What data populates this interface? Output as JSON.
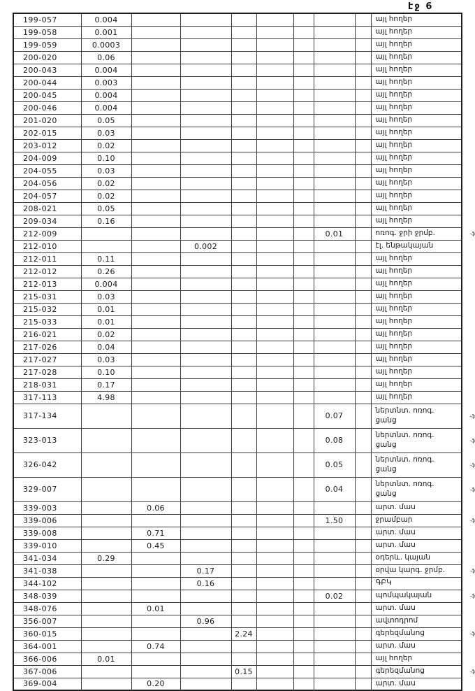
{
  "page_label": "էջ 6",
  "margin_mark": "-ֆմ",
  "rows": [
    {
      "id": "199-057",
      "values": {
        "c2": "0.004"
      },
      "name": "այլ հողեր"
    },
    {
      "id": "199-058",
      "values": {
        "c2": "0.001"
      },
      "name": "այլ հողեր"
    },
    {
      "id": "199-059",
      "values": {
        "c2": "0.0003"
      },
      "name": "այլ հողեր"
    },
    {
      "id": "200-020",
      "values": {
        "c2": "0.06"
      },
      "name": "այլ հողեր"
    },
    {
      "id": "200-043",
      "values": {
        "c2": "0.004"
      },
      "name": "այլ հողեր"
    },
    {
      "id": "200-044",
      "values": {
        "c2": "0.003"
      },
      "name": "այլ հողեր"
    },
    {
      "id": "200-045",
      "values": {
        "c2": "0.004"
      },
      "name": "այլ հողեր"
    },
    {
      "id": "200-046",
      "values": {
        "c2": "0.004"
      },
      "name": "այլ հողեր"
    },
    {
      "id": "201-020",
      "values": {
        "c2": "0.05"
      },
      "name": "այլ հողեր"
    },
    {
      "id": "202-015",
      "values": {
        "c2": "0.03"
      },
      "name": "այլ հողեր"
    },
    {
      "id": "203-012",
      "values": {
        "c2": "0.02"
      },
      "name": "այլ հողեր"
    },
    {
      "id": "204-009",
      "values": {
        "c2": "0.10"
      },
      "name": "այլ հողեր"
    },
    {
      "id": "204-055",
      "values": {
        "c2": "0.03"
      },
      "name": "այլ հողեր"
    },
    {
      "id": "204-056",
      "values": {
        "c2": "0.02"
      },
      "name": "այլ հողեր"
    },
    {
      "id": "204-057",
      "values": {
        "c2": "0.02"
      },
      "name": "այլ հողեր"
    },
    {
      "id": "208-021",
      "values": {
        "c2": "0.05"
      },
      "name": "այլ հողեր"
    },
    {
      "id": "209-034",
      "values": {
        "c2": "0.16"
      },
      "name": "այլ հողեր"
    },
    {
      "id": "212-009",
      "values": {
        "c8": "0.01"
      },
      "name": "ոռոգ. ջրի ջրմբ.",
      "mark": true
    },
    {
      "id": "212-010",
      "values": {
        "c4": "0.002"
      },
      "name": "էլ. ենթակայան"
    },
    {
      "id": "212-011",
      "values": {
        "c2": "0.11"
      },
      "name": "այլ հողեր"
    },
    {
      "id": "212-012",
      "values": {
        "c2": "0.26"
      },
      "name": "այլ հողեր"
    },
    {
      "id": "212-013",
      "values": {
        "c2": "0.004"
      },
      "name": "այլ հողեր"
    },
    {
      "id": "215-031",
      "values": {
        "c2": "0.03"
      },
      "name": "այլ հողեր"
    },
    {
      "id": "215-032",
      "values": {
        "c2": "0.01"
      },
      "name": "այլ հողեր"
    },
    {
      "id": "215-033",
      "values": {
        "c2": "0.01"
      },
      "name": "այլ հողեր"
    },
    {
      "id": "216-021",
      "values": {
        "c2": "0.02"
      },
      "name": "այլ հողեր"
    },
    {
      "id": "217-026",
      "values": {
        "c2": "0.04"
      },
      "name": "այլ հողեր"
    },
    {
      "id": "217-027",
      "values": {
        "c2": "0.03"
      },
      "name": "այլ հողեր"
    },
    {
      "id": "217-028",
      "values": {
        "c2": "0.10"
      },
      "name": "այլ հողեր"
    },
    {
      "id": "218-031",
      "values": {
        "c2": "0.17"
      },
      "name": "այլ հողեր"
    },
    {
      "id": "317-113",
      "values": {
        "c2": "4.98"
      },
      "name": "այլ հողեր"
    },
    {
      "id": "317-134",
      "values": {
        "c8": "0.07"
      },
      "name": "ներտնտ. ոռոգ.\nցանց",
      "tall": true,
      "mark": true
    },
    {
      "id": "323-013",
      "values": {
        "c8": "0.08"
      },
      "name": "ներտնտ. ոռոգ.\nցանց",
      "tall": true,
      "mark": true
    },
    {
      "id": "326-042",
      "values": {
        "c8": "0.05"
      },
      "name": "ներտնտ. ոռոգ.\nցանց",
      "tall": true,
      "mark": true
    },
    {
      "id": "329-007",
      "values": {
        "c8": "0.04"
      },
      "name": "ներտնտ. ոռոգ.\nցանց",
      "tall": true,
      "mark": true
    },
    {
      "id": "339-003",
      "values": {
        "c3": "0.06"
      },
      "name": "արտ. մաս"
    },
    {
      "id": "339-006",
      "values": {
        "c8": "1.50"
      },
      "name": "ջրամբար",
      "mark": true
    },
    {
      "id": "339-008",
      "values": {
        "c3": "0.71"
      },
      "name": "արտ. մաս"
    },
    {
      "id": "339-010",
      "values": {
        "c3": "0.45"
      },
      "name": "արտ. մաս"
    },
    {
      "id": "341-034",
      "values": {
        "c2": "0.29"
      },
      "name": "օդերև. կայան"
    },
    {
      "id": "341-038",
      "values": {
        "c4": "0.17"
      },
      "name": "օրվա կարգ. ջրմբ.",
      "mark": true
    },
    {
      "id": "344-102",
      "values": {
        "c4": "0.16"
      },
      "name": "ԳԲԿ"
    },
    {
      "id": "348-039",
      "values": {
        "c8": "0.02"
      },
      "name": "պոմպակայան",
      "mark": true
    },
    {
      "id": "348-076",
      "values": {
        "c3": "0.01"
      },
      "name": "արտ. մաս"
    },
    {
      "id": "356-007",
      "values": {
        "c4": "0.96"
      },
      "name": "ավտոդրոմ"
    },
    {
      "id": "360-015",
      "values": {
        "c5": "2.24"
      },
      "name": "գերեզմանոց",
      "mark": true
    },
    {
      "id": "364-001",
      "values": {
        "c3": "0.74"
      },
      "name": "արտ. մաս"
    },
    {
      "id": "366-006",
      "values": {
        "c2": "0.01"
      },
      "name": "այլ հողեր"
    },
    {
      "id": "367-006",
      "values": {
        "c5": "0.15"
      },
      "name": "գերեզմանոց",
      "mark": true
    },
    {
      "id": "369-004",
      "values": {
        "c3": "0.20"
      },
      "name": "արտ. մաս"
    }
  ]
}
